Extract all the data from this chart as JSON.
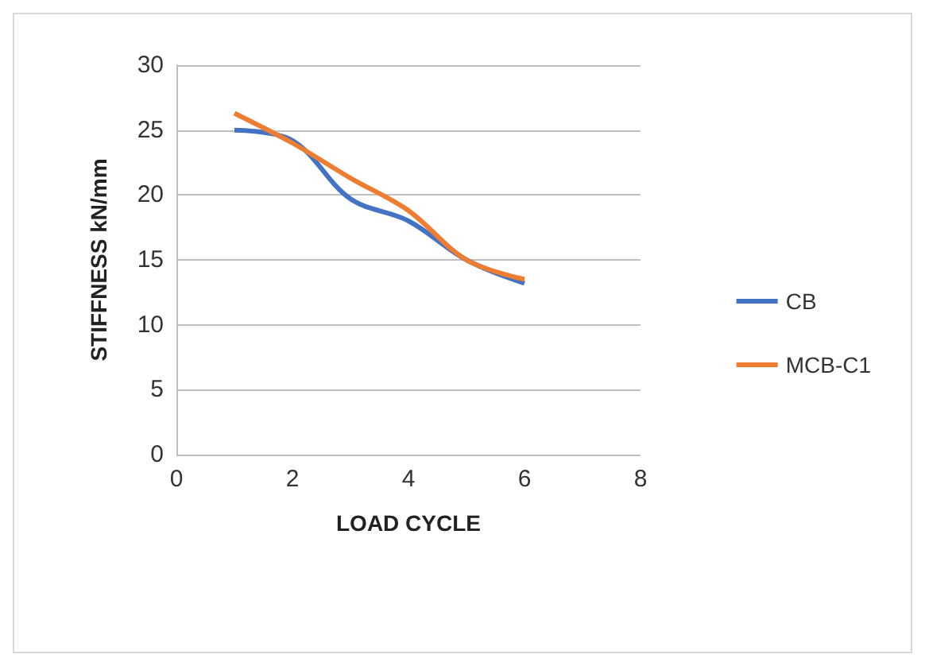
{
  "chart_data": {
    "type": "line",
    "xlabel": "LOAD CYCLE",
    "ylabel": "STIFFNESS kN/mm",
    "x": [
      1,
      2,
      3,
      4,
      5,
      6
    ],
    "series": [
      {
        "name": "CB",
        "color": "#4472c4",
        "values": [
          25,
          24.2,
          19.7,
          18,
          15,
          13.2
        ]
      },
      {
        "name": "MCB-C1",
        "color": "#ed7d31",
        "values": [
          26.3,
          24,
          21.3,
          18.8,
          15,
          13.5
        ]
      }
    ],
    "xlim": [
      0,
      8
    ],
    "xticks": [
      0,
      2,
      4,
      6,
      8
    ],
    "ylim": [
      0,
      30
    ],
    "yticks": [
      0,
      5,
      10,
      15,
      20,
      25,
      30
    ],
    "grid": "y",
    "legend": "right",
    "marker": "none",
    "line_style": "solid"
  }
}
